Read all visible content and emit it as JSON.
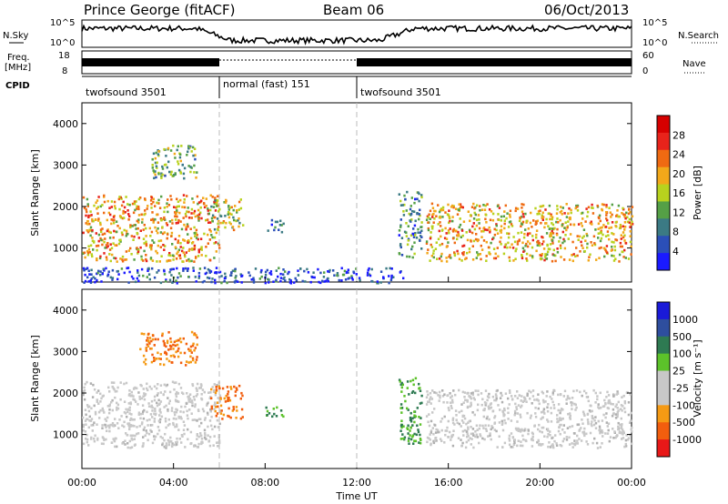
{
  "header": {
    "station": "Prince George (fitACF)",
    "beam": "Beam 06",
    "date": "06/Oct/2013"
  },
  "summary_panels": {
    "nsky_label": "N.Sky",
    "nsky_ticks": [
      "10^5",
      "10^0"
    ],
    "nsearch_label": "N.Search",
    "nsearch_ticks": [
      "10^5",
      "10^0"
    ],
    "freq_label_line1": "Freq.",
    "freq_label_line2": "[MHz]",
    "freq_ticks": [
      "18",
      "8"
    ],
    "nave_label": "Nave",
    "nave_ticks": [
      "60",
      "0"
    ],
    "cpid_label": "CPID",
    "modes": [
      {
        "name": "twofsound 3501",
        "start_hour": 0,
        "end_hour": 6
      },
      {
        "name": "normal (fast) 151",
        "start_hour": 6,
        "end_hour": 12
      },
      {
        "name": "twofsound 3501",
        "start_hour": 12,
        "end_hour": 24
      }
    ]
  },
  "colors": {
    "power": [
      "#1a1aff",
      "#2b4fb8",
      "#3b7a84",
      "#55a046",
      "#b8d21e",
      "#f2a81a",
      "#ef6a12",
      "#e8231b",
      "#d60000"
    ],
    "velocity": [
      "#e81818",
      "#f25e0e",
      "#f59a14",
      "#c8c8c8",
      "#c8c8c8",
      "#5cc22a",
      "#2e7a52",
      "#2e4e9e",
      "#1a1ad8"
    ]
  },
  "chart_data": [
    {
      "type": "heatmap",
      "title": "",
      "xlabel": "",
      "ylabel": "Slant Range [km]",
      "colorbar_label": "Power [dB]",
      "colorbar_ticks": [
        "28",
        "24",
        "20",
        "16",
        "12",
        "8",
        "4"
      ],
      "x_range_hours": [
        0,
        24
      ],
      "ylim": [
        180,
        4500
      ],
      "y_ticks": [
        "4000",
        "3000",
        "2000",
        "1000"
      ],
      "y_tick_values": [
        4000,
        3000,
        2000,
        1000
      ],
      "regions": [
        {
          "x": [
            0,
            6
          ],
          "y": [
            700,
            2300
          ],
          "value": 24
        },
        {
          "x": [
            3,
            5
          ],
          "y": [
            2700,
            3500
          ],
          "value": 16
        },
        {
          "x": [
            5.6,
            7
          ],
          "y": [
            1400,
            2200
          ],
          "value": 20
        },
        {
          "x": [
            8,
            8.8
          ],
          "y": [
            1400,
            1700
          ],
          "value": 8
        },
        {
          "x": [
            0,
            14
          ],
          "y": [
            180,
            550
          ],
          "value": 8
        },
        {
          "x": [
            13.8,
            14.8
          ],
          "y": [
            800,
            2400
          ],
          "value": 12
        },
        {
          "x": [
            15,
            24
          ],
          "y": [
            700,
            2100
          ],
          "value": 24
        }
      ]
    },
    {
      "type": "heatmap",
      "title": "",
      "xlabel": "Time UT",
      "ylabel": "Slant Range [km]",
      "colorbar_label": "Velocity [m s⁻¹]",
      "colorbar_ticks": [
        "1000",
        "500",
        "100",
        "25",
        "-25",
        "-100",
        "-500",
        "-1000"
      ],
      "x_range_hours": [
        0,
        24
      ],
      "x_ticks": [
        "00:00",
        "04:00",
        "08:00",
        "12:00",
        "16:00",
        "20:00",
        "00:00"
      ],
      "ylim": [
        180,
        4500
      ],
      "y_ticks": [
        "4000",
        "3000",
        "2000",
        "1000"
      ],
      "y_tick_values": [
        4000,
        3000,
        2000,
        1000
      ],
      "regions": [
        {
          "x": [
            0,
            6
          ],
          "y": [
            700,
            2300
          ],
          "value": 0
        },
        {
          "x": [
            2.5,
            5
          ],
          "y": [
            2700,
            3500
          ],
          "value": -200
        },
        {
          "x": [
            5.6,
            7
          ],
          "y": [
            1400,
            2200
          ],
          "value": -300
        },
        {
          "x": [
            8,
            8.8
          ],
          "y": [
            1400,
            1700
          ],
          "value": 50
        },
        {
          "x": [
            13.8,
            14.8
          ],
          "y": [
            800,
            2400
          ],
          "value": 80
        },
        {
          "x": [
            15,
            24
          ],
          "y": [
            700,
            2100
          ],
          "value": 0
        }
      ]
    }
  ]
}
